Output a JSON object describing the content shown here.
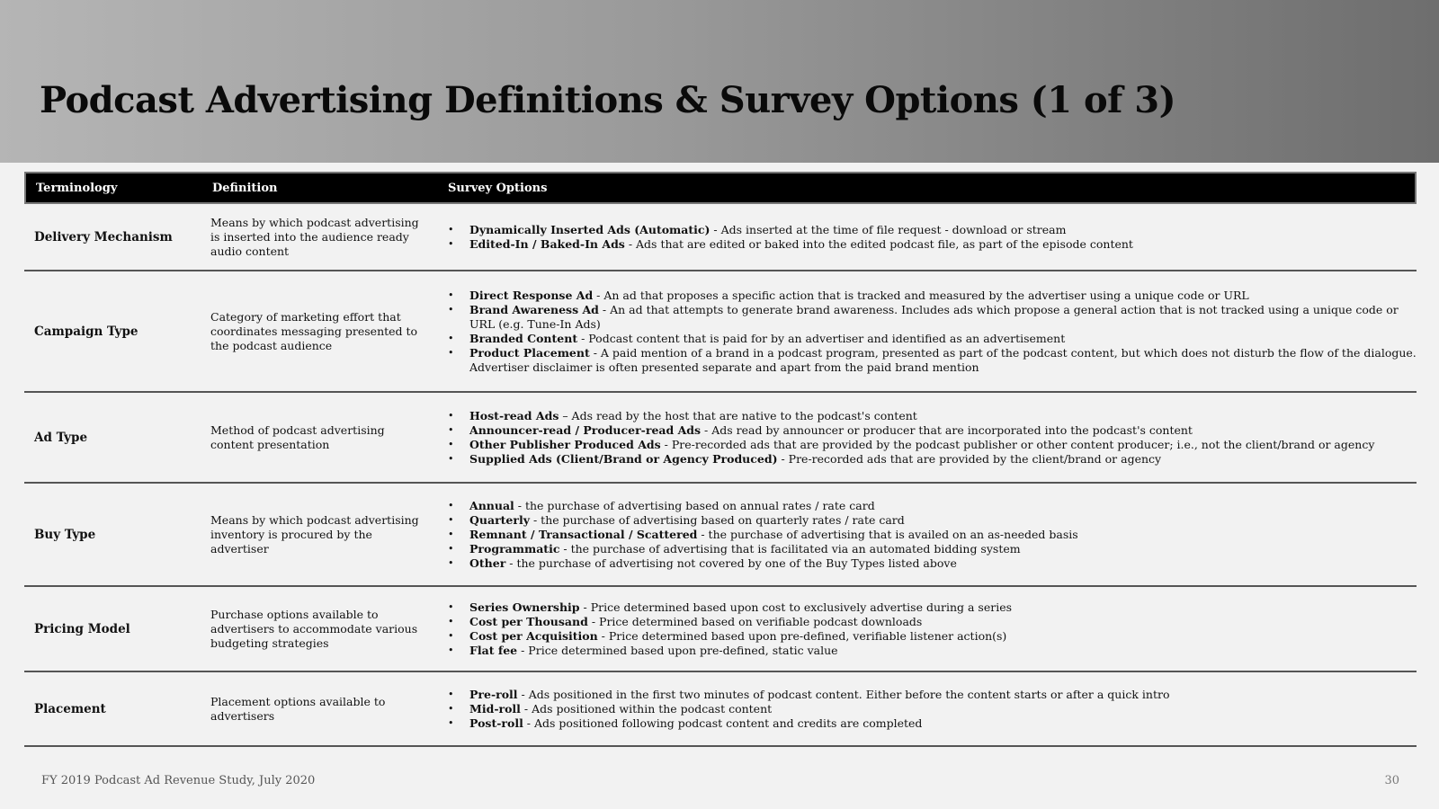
{
  "title": "Podcast Advertising Definitions & Survey Options (1 of 3)",
  "columns": {
    "terminology": "Terminology",
    "definition": "Definition",
    "options": "Survey Options"
  },
  "rows": [
    {
      "term": "Delivery Mechanism",
      "definition": "Means by which podcast advertising is inserted into the audience ready audio content",
      "options": [
        {
          "name": "Dynamically Inserted Ads (Automatic)",
          "desc": " - Ads inserted at the time of file request - download or stream"
        },
        {
          "name": "Edited-In / Baked-In Ads",
          "desc": " - Ads that are edited or baked into the edited podcast file, as part of the episode content"
        }
      ]
    },
    {
      "term": "Campaign Type",
      "definition": "Category of marketing effort that coordinates messaging presented to the podcast audience",
      "options": [
        {
          "name": "Direct Response Ad",
          "desc": " - An ad that proposes a specific action that is tracked and measured by the advertiser using a unique code or URL"
        },
        {
          "name": "Brand Awareness Ad",
          "desc": " - An ad that attempts to generate brand awareness. Includes ads which propose a general action that is not tracked using a unique code or URL (e.g. Tune-In Ads)"
        },
        {
          "name": "Branded Content",
          "desc": " - Podcast content that is paid for by an advertiser and identified as an advertisement"
        },
        {
          "name": "Product Placement",
          "desc": " - A paid mention of a brand in a podcast program, presented as part of the podcast content, but which does not disturb the flow of the dialogue. Advertiser disclaimer is often presented separate and apart from the paid brand mention"
        }
      ]
    },
    {
      "term": "Ad Type",
      "definition": "Method of podcast advertising content presentation",
      "options": [
        {
          "name": "Host-read Ads",
          "desc": " – Ads read by the host that are native to the podcast's content"
        },
        {
          "name": "Announcer-read / Producer-read Ads",
          "desc": " - Ads read by announcer or producer that are incorporated into the podcast's content"
        },
        {
          "name": "Other Publisher Produced Ads",
          "desc": " - Pre-recorded ads that are provided by the podcast publisher or other content  producer; i.e., not the client/brand or agency"
        },
        {
          "name": "Supplied Ads (Client/Brand or Agency Produced)",
          "desc": " - Pre-recorded ads that are provided by the client/brand or agency"
        }
      ]
    },
    {
      "term": "Buy Type",
      "definition": "Means by which podcast advertising inventory is procured by the advertiser",
      "options": [
        {
          "name": "Annual",
          "desc": " - the purchase of advertising based on annual rates / rate card"
        },
        {
          "name": "Quarterly",
          "desc": " - the purchase of advertising based on quarterly rates / rate card"
        },
        {
          "name": "Remnant / Transactional / Scattered",
          "desc": " - the purchase of advertising that is availed on an as-needed basis"
        },
        {
          "name": "Programmatic",
          "desc": " - the purchase of advertising that is facilitated via an automated bidding system"
        },
        {
          "name": "Other",
          "desc": " - the purchase of advertising not covered by one of the Buy Types listed above"
        }
      ]
    },
    {
      "term": "Pricing Model",
      "definition": "Purchase options available to advertisers to accommodate various budgeting strategies",
      "options": [
        {
          "name": "Series Ownership",
          "desc": " - Price determined based upon cost to exclusively advertise during a series"
        },
        {
          "name": "Cost per Thousand",
          "desc": " - Price determined based on verifiable podcast downloads"
        },
        {
          "name": "Cost per Acquisition",
          "desc": " - Price determined based upon pre-defined, verifiable listener action(s)"
        },
        {
          "name": "Flat fee",
          "desc": " - Price determined based upon pre-defined, static value"
        }
      ]
    },
    {
      "term": "Placement",
      "definition": "Placement options available to advertisers",
      "options": [
        {
          "name": "Pre-roll",
          "desc": " - Ads positioned in the first two minutes of podcast content. Either before the content starts or after a quick intro"
        },
        {
          "name": "Mid-roll",
          "desc": " - Ads positioned within the podcast content"
        },
        {
          "name": "Post-roll",
          "desc": " - Ads positioned following podcast content and credits are completed"
        }
      ]
    }
  ],
  "footer": "FY 2019 Podcast Ad Revenue Study, July 2020",
  "page_number": "30"
}
